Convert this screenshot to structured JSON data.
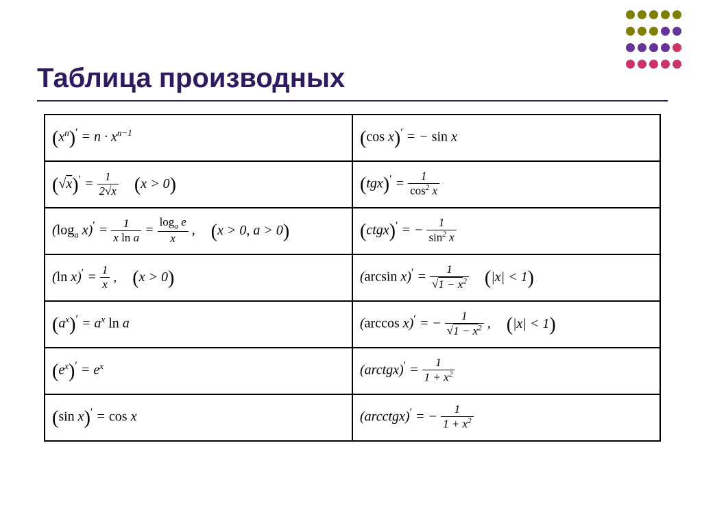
{
  "title": "Таблица производных",
  "dotGrid": {
    "rows": 4,
    "cols": 5,
    "colors": [
      "#808000",
      "#663399",
      "#cc3366"
    ]
  },
  "rows": [
    {
      "left": "(x^n)' = n · x^{n-1}",
      "right": "(cos x)' = − sin x"
    },
    {
      "left": "(√x)' = 1 / (2√x)   (x > 0)",
      "right": "(tg x)' = 1 / cos² x"
    },
    {
      "left": "(log_a x)' = 1 / (x ln a) = log_a e / x ,   (x > 0, a > 0)",
      "right": "(ctg x)' = − 1 / sin² x"
    },
    {
      "left": "(ln x)' = 1 / x ,   (x > 0)",
      "right": "(arcsin x)' = 1 / √(1−x²)   (|x| < 1)"
    },
    {
      "left": "(a^x)' = a^x ln a",
      "right": "(arccos x)' = − 1 / √(1−x²) ,   (|x| < 1)"
    },
    {
      "left": "(e^x)' = e^x",
      "right": "(arctg x)' = 1 / (1 + x²)"
    },
    {
      "left": "(sin x)' = cos x",
      "right": "(arcctg x)' = − 1 / (1 + x²)"
    }
  ],
  "style": {
    "title_color": "#2e1a5e",
    "title_fontsize": 40,
    "border_color": "#000000",
    "font_family": "Times New Roman",
    "cell_fontsize": 20
  }
}
